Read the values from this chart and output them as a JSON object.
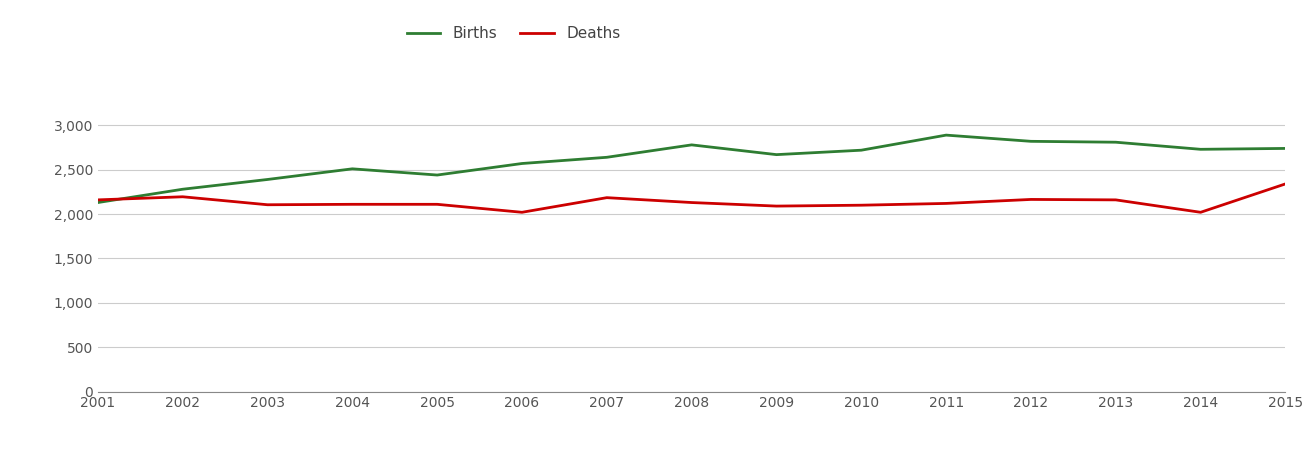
{
  "years": [
    2001,
    2002,
    2003,
    2004,
    2005,
    2006,
    2007,
    2008,
    2009,
    2010,
    2011,
    2012,
    2013,
    2014,
    2015
  ],
  "births": [
    2130,
    2280,
    2390,
    2510,
    2440,
    2570,
    2640,
    2780,
    2670,
    2720,
    2890,
    2820,
    2810,
    2730,
    2740
  ],
  "deaths": [
    2160,
    2195,
    2105,
    2110,
    2110,
    2020,
    2185,
    2130,
    2090,
    2100,
    2120,
    2165,
    2160,
    2020,
    2340
  ],
  "births_color": "#2e7d32",
  "deaths_color": "#cc0000",
  "line_width": 2.0,
  "ylim": [
    0,
    3500
  ],
  "yticks": [
    0,
    500,
    1000,
    1500,
    2000,
    2500,
    3000
  ],
  "background_color": "#ffffff",
  "grid_color": "#cccccc",
  "legend_labels": [
    "Births",
    "Deaths"
  ],
  "tick_color": "#555555",
  "tick_fontsize": 10
}
